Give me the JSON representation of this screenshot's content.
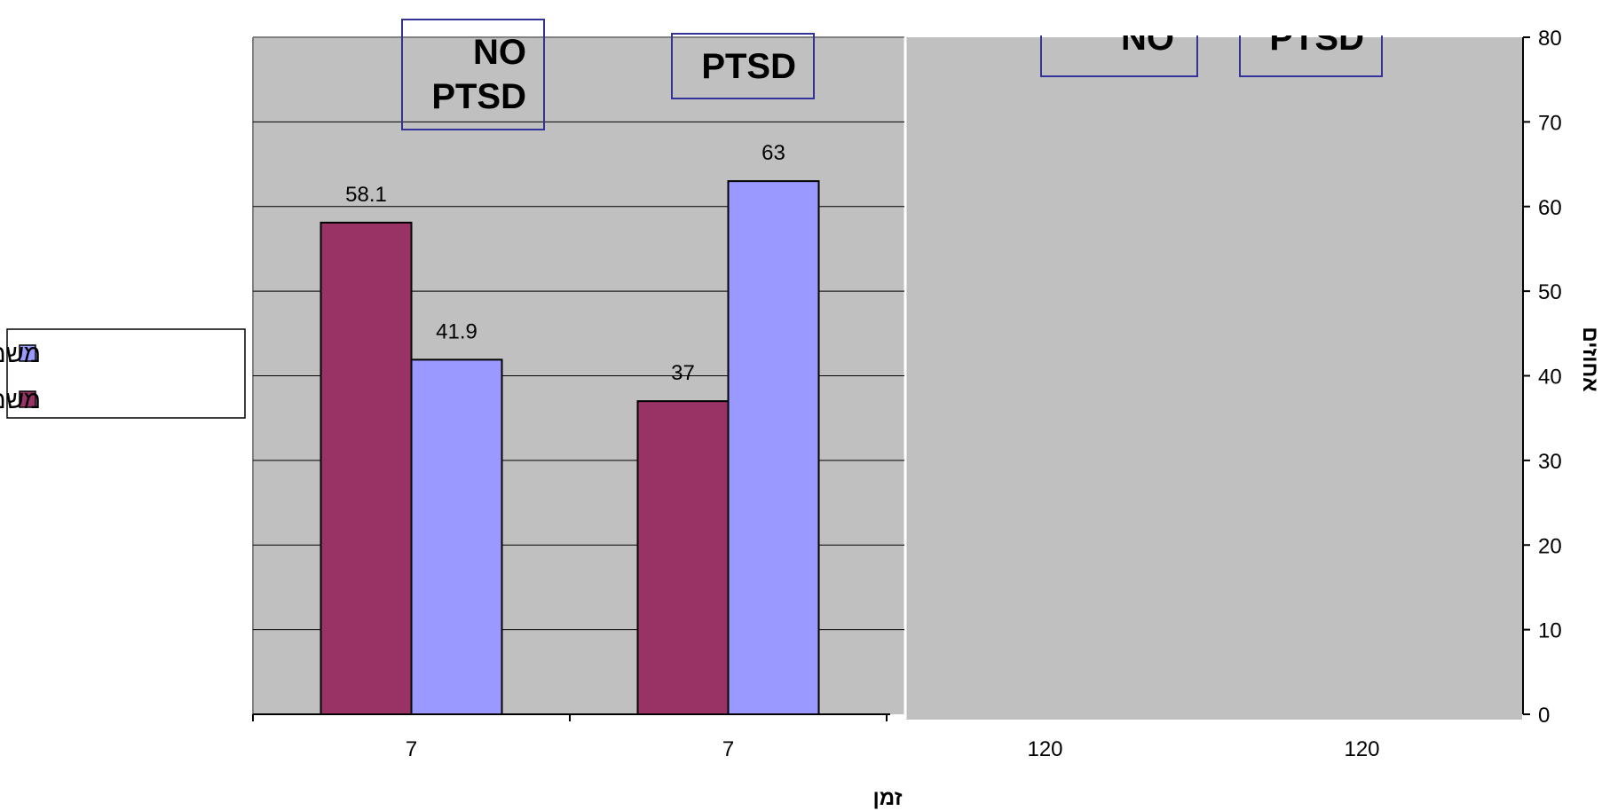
{
  "chart_data": {
    "type": "bar",
    "categories": [
      "7",
      "7",
      "120",
      "120"
    ],
    "series": [
      {
        "name": "משמעות ספציפית",
        "color": "#993366",
        "values": [
          58.1,
          37,
          null,
          null
        ]
      },
      {
        "name": "משמעות כוללת",
        "color": "#9999ff",
        "values": [
          41.9,
          63,
          null,
          null
        ]
      }
    ],
    "data_labels": [
      [
        "58.1",
        "37"
      ],
      [
        "41.9",
        "63"
      ]
    ],
    "group_labels": [
      {
        "lines": [
          "NO",
          "PTSD"
        ]
      },
      {
        "lines": [
          "PTSD"
        ]
      },
      {
        "lines": [
          "NO"
        ]
      },
      {
        "lines": [
          "PTSD"
        ]
      }
    ],
    "xlabel": "זמן",
    "ylabel": "אחוזים",
    "ylim": [
      0,
      80
    ],
    "yticks": [
      "0",
      "10",
      "20",
      "30",
      "40",
      "50",
      "60",
      "70",
      "80"
    ],
    "y_axis_side": "right",
    "grid": true,
    "legend_position": "left",
    "plot_background": "#c0c0c0",
    "frame_color": "#333399"
  }
}
